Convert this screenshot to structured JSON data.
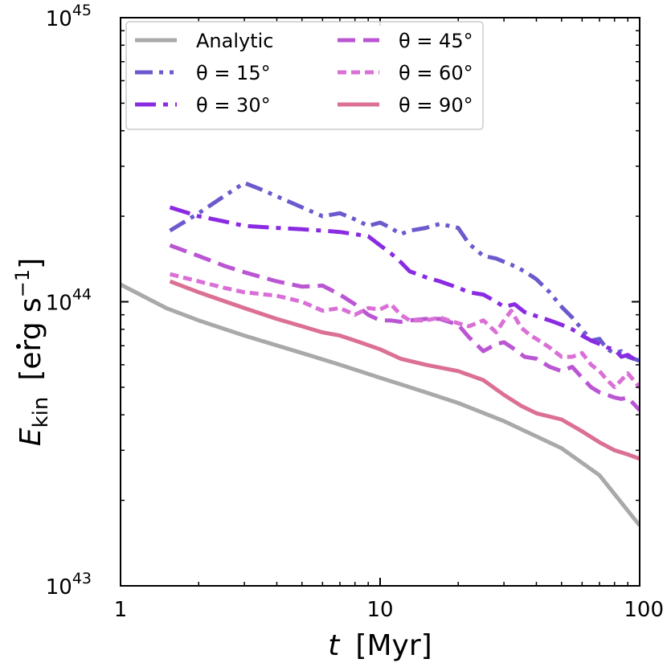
{
  "chart_data": {
    "type": "line",
    "xscale": "log",
    "yscale": "log",
    "xlim": [
      1,
      100
    ],
    "ylim": [
      1e+43,
      1e+45
    ],
    "xlabel": {
      "var": "t",
      "unit": "[Myr]"
    },
    "ylabel": {
      "var": "E",
      "sub": "kin",
      "unit_open": "[erg s",
      "unit_exp": "−1",
      "unit_close": "]"
    },
    "x_ticks": [
      {
        "value": 1,
        "label": "1"
      },
      {
        "value": 10,
        "label": "10"
      },
      {
        "value": 100,
        "label": "100"
      }
    ],
    "y_ticks": [
      {
        "value": 1e+43,
        "base": "10",
        "exp": "43"
      },
      {
        "value": 1e+44,
        "base": "10",
        "exp": "44"
      },
      {
        "value": 1e+45,
        "base": "10",
        "exp": "45"
      }
    ],
    "series": [
      {
        "name": "Analytic",
        "label_text": "Analytic",
        "color": "#a9a9a9",
        "dash": "solid",
        "x": [
          1,
          1.5,
          2,
          3,
          5,
          7,
          10,
          15,
          20,
          30,
          50,
          70,
          100
        ],
        "y": [
          1.15e+44,
          9.5e+43,
          8.6e+43,
          7.6e+43,
          6.6e+43,
          6e+43,
          5.4e+43,
          4.8e+43,
          4.4e+43,
          3.8e+43,
          3.05e+43,
          2.45e+43,
          1.63e+43
        ]
      },
      {
        "name": "theta=15",
        "label_text": "θ = 15°",
        "color": "#6a5acd",
        "dash": "dashdotdot",
        "x": [
          1.55,
          2,
          2.5,
          3,
          3.5,
          4,
          5,
          6,
          7,
          8,
          9,
          10,
          11,
          12,
          13,
          15,
          17,
          20,
          22,
          25,
          28,
          32,
          36,
          40,
          45,
          50,
          55,
          60,
          65,
          70,
          75,
          80,
          85,
          90,
          100
        ],
        "y": [
          1.78e+44,
          2.05e+44,
          2.35e+44,
          2.62e+44,
          2.48e+44,
          2.35e+44,
          2.15e+44,
          2e+44,
          2.05e+44,
          1.95e+44,
          1.85e+44,
          1.9e+44,
          1.82e+44,
          1.73e+44,
          1.78e+44,
          1.82e+44,
          1.88e+44,
          1.82e+44,
          1.6e+44,
          1.45e+44,
          1.42e+44,
          1.35e+44,
          1.28e+44,
          1.2e+44,
          1.08e+44,
          9.6e+43,
          8.8e+43,
          8e+43,
          7.3e+43,
          7.4e+43,
          6.8e+43,
          6.6e+43,
          6.7e+43,
          6.4e+43,
          6.2e+43
        ]
      },
      {
        "name": "theta=30",
        "label_text": "θ = 30°",
        "color": "#8a2be2",
        "dash": "dashdot",
        "x": [
          1.55,
          2,
          2.5,
          3,
          4,
          5,
          6,
          7,
          8,
          9,
          10,
          11,
          12,
          13,
          15,
          17,
          20,
          22,
          25,
          28,
          30,
          33,
          36,
          40,
          45,
          50,
          55,
          60,
          65,
          70,
          75,
          80,
          85,
          90,
          100
        ],
        "y": [
          2.15e+44,
          2e+44,
          1.92e+44,
          1.85e+44,
          1.82e+44,
          1.8e+44,
          1.78e+44,
          1.76e+44,
          1.73e+44,
          1.7e+44,
          1.58e+44,
          1.48e+44,
          1.38e+44,
          1.28e+44,
          1.22e+44,
          1.18e+44,
          1.12e+44,
          1.08e+44,
          1.06e+44,
          1e+44,
          9.6e+43,
          9.8e+43,
          9.2e+43,
          8.9e+43,
          8.6e+43,
          8.3e+43,
          8e+43,
          7.6e+43,
          7.3e+43,
          7.1e+43,
          6.9e+43,
          6.8e+43,
          6.4e+43,
          6.5e+43,
          6.1e+43
        ]
      },
      {
        "name": "theta=45",
        "label_text": "θ = 45°",
        "color": "#ba55d3",
        "dash": "dashed",
        "x": [
          1.55,
          2,
          2.5,
          3,
          4,
          5,
          6,
          7,
          8,
          9,
          10,
          11,
          12,
          13,
          15,
          17,
          20,
          22,
          25,
          28,
          30,
          33,
          36,
          40,
          45,
          50,
          55,
          60,
          65,
          70,
          75,
          80,
          85,
          90,
          100
        ],
        "y": [
          1.58e+44,
          1.45e+44,
          1.34e+44,
          1.27e+44,
          1.18e+44,
          1.13e+44,
          1.14e+44,
          1.06e+44,
          9.8e+43,
          9e+43,
          8.6e+43,
          8.6e+43,
          8.5e+43,
          8.6e+43,
          8.7e+43,
          8.7e+43,
          8.3e+43,
          7.5e+43,
          6.7e+43,
          7.1e+43,
          7.2e+43,
          6.8e+43,
          6.4e+43,
          6.3e+43,
          5.9e+43,
          5.7e+43,
          5.9e+43,
          5.4e+43,
          5e+43,
          4.8e+43,
          4.7e+43,
          4.6e+43,
          4.55e+43,
          4.6e+43,
          4.15e+43
        ]
      },
      {
        "name": "theta=60",
        "label_text": "θ = 60°",
        "color": "#da70d6",
        "dash": "dotted",
        "x": [
          1.55,
          2,
          2.5,
          3,
          4,
          5,
          6,
          7,
          8,
          9,
          10,
          11,
          12,
          13,
          15,
          17,
          20,
          22,
          25,
          28,
          30,
          32,
          35,
          38,
          40,
          45,
          50,
          55,
          60,
          65,
          70,
          75,
          80,
          85,
          90,
          100
        ],
        "y": [
          1.25e+44,
          1.18e+44,
          1.12e+44,
          1.08e+44,
          1.05e+44,
          1e+44,
          9.3e+43,
          9.5e+43,
          9e+43,
          9.5e+43,
          9.4e+43,
          9.8e+43,
          9e+43,
          8.6e+43,
          8.6e+43,
          8.8e+43,
          8.4e+43,
          8.2e+43,
          8.6e+43,
          7.8e+43,
          8.6e+43,
          9.3e+43,
          8.1e+43,
          7.6e+43,
          7.4e+43,
          6.9e+43,
          6.4e+43,
          6.4e+43,
          6.6e+43,
          6e+43,
          5.7e+43,
          5.3e+43,
          5e+43,
          5.3e+43,
          5.6e+43,
          5e+43
        ]
      },
      {
        "name": "theta=90",
        "label_text": "θ = 90°",
        "color": "#db7093",
        "dash": "solid",
        "x": [
          1.55,
          2,
          3,
          4,
          5,
          6,
          7,
          8,
          10,
          12,
          15,
          20,
          25,
          30,
          35,
          40,
          50,
          60,
          70,
          80,
          90,
          100
        ],
        "y": [
          1.18e+44,
          1.08e+44,
          9.5e+43,
          8.7e+43,
          8.2e+43,
          7.8e+43,
          7.6e+43,
          7.3e+43,
          6.8e+43,
          6.3e+43,
          6e+43,
          5.7e+43,
          5.3e+43,
          4.7e+43,
          4.3e+43,
          4.05e+43,
          3.85e+43,
          3.5e+43,
          3.2e+43,
          3e+43,
          2.9e+43,
          2.8e+43
        ]
      }
    ],
    "legend": {
      "position": "top-left",
      "columns": 2
    }
  }
}
